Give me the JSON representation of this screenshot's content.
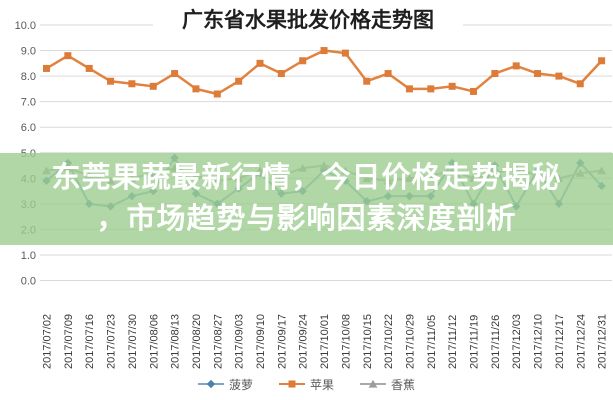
{
  "chart_data": {
    "type": "line",
    "title": "广东省水果批发价格走势图",
    "categories": [
      "2017/07/02",
      "2017/07/09",
      "2017/07/16",
      "2017/07/23",
      "2017/07/30",
      "2017/08/06",
      "2017/08/13",
      "2017/08/20",
      "2017/08/27",
      "2017/09/03",
      "2017/09/10",
      "2017/09/17",
      "2017/09/24",
      "2017/10/01",
      "2017/10/08",
      "2017/10/15",
      "2017/10/22",
      "2017/10/29",
      "2017/11/05",
      "2017/11/12",
      "2017/11/19",
      "2017/11/26",
      "2017/12/03",
      "2017/12/10",
      "2017/12/17",
      "2017/12/24",
      "2017/12/31"
    ],
    "series": [
      {
        "id": "pineapple",
        "name": "菠萝",
        "marker": "diamond",
        "color": "#7fa7c9",
        "marker_color": "#4f81ad",
        "line_width": 2,
        "values": [
          3.9,
          4.6,
          3.0,
          2.9,
          3.3,
          3.5,
          4.8,
          3.4,
          3.0,
          3.6,
          4.2,
          3.4,
          3.5,
          4.3,
          3.9,
          3.1,
          3.3,
          3.3,
          3.3,
          4.6,
          3.0,
          4.5,
          2.9,
          4.3,
          3.0,
          4.6,
          3.7
        ]
      },
      {
        "id": "apple",
        "name": "苹果",
        "marker": "square",
        "color": "#e2823f",
        "marker_color": "#dd7b38",
        "line_width": 2.5,
        "values": [
          8.3,
          8.8,
          8.3,
          7.8,
          7.7,
          7.6,
          8.1,
          7.5,
          7.3,
          7.8,
          8.5,
          8.1,
          8.6,
          9.0,
          8.9,
          7.8,
          8.1,
          7.5,
          7.5,
          7.6,
          7.4,
          8.1,
          8.4,
          8.1,
          8.0,
          7.7,
          8.6
        ]
      },
      {
        "id": "banana",
        "name": "香蕉",
        "marker": "triangle",
        "color": "#aaaaaa",
        "marker_color": "#9d9d9d",
        "line_width": 2,
        "values": [
          4.3,
          4.4,
          4.1,
          3.9,
          4.0,
          4.2,
          4.4,
          4.1,
          3.9,
          4.0,
          4.3,
          4.1,
          4.4,
          4.5,
          4.3,
          4.0,
          3.9,
          4.0,
          4.1,
          4.3,
          4.0,
          4.2,
          4.4,
          4.1,
          4.0,
          4.2,
          4.3
        ]
      }
    ],
    "ylim": [
      0,
      10
    ],
    "ytick_labels": [
      "0.0",
      "1.0",
      "2.0",
      "3.0",
      "4.0",
      "5.0",
      "6.0",
      "7.0",
      "8.0",
      "9.0",
      "10.0"
    ],
    "grid": "horizontal",
    "grid_color": "#d9d9d9",
    "axis_label_color": "#595959",
    "xtick_label_color": "#3a3a3a",
    "legend_position": "bottom"
  },
  "overlay": {
    "line1": "东莞果蔬最新行情，今日价格走势揭秘",
    "line2": "，市场趋势与影响因素深度剖析",
    "band_color": "#9ccd8e",
    "band_opacity": 0.8,
    "text_color": "#ffffff"
  }
}
